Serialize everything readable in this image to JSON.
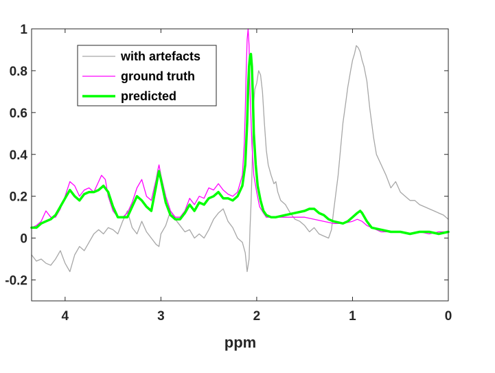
{
  "chart_data": {
    "type": "line",
    "title": "",
    "xlabel": "ppm",
    "ylabel": "",
    "xlim": [
      4.35,
      0
    ],
    "ylim": [
      -0.3,
      1.0
    ],
    "x_reversed": true,
    "grid": false,
    "legend_position": "top-left",
    "xticks": [
      4,
      3,
      2,
      1,
      0
    ],
    "xtick_labels": [
      "4",
      "3",
      "2",
      "1",
      "0"
    ],
    "yticks": [
      -0.2,
      0,
      0.2,
      0.4,
      0.6,
      0.8,
      1
    ],
    "ytick_labels": [
      "-0.2",
      "0",
      "0.2",
      "0.4",
      "0.6",
      "0.8",
      "1"
    ],
    "series": [
      {
        "name": "with artefacts",
        "color": "#a6a6a6",
        "line_width": "thin",
        "points": [
          [
            4.35,
            -0.08
          ],
          [
            4.3,
            -0.11
          ],
          [
            4.25,
            -0.1
          ],
          [
            4.2,
            -0.12
          ],
          [
            4.15,
            -0.13
          ],
          [
            4.1,
            -0.1
          ],
          [
            4.05,
            -0.06
          ],
          [
            4.0,
            -0.12
          ],
          [
            3.95,
            -0.16
          ],
          [
            3.9,
            -0.08
          ],
          [
            3.85,
            -0.04
          ],
          [
            3.8,
            -0.06
          ],
          [
            3.75,
            -0.02
          ],
          [
            3.7,
            0.02
          ],
          [
            3.65,
            0.04
          ],
          [
            3.6,
            0.02
          ],
          [
            3.55,
            0.05
          ],
          [
            3.5,
            0.04
          ],
          [
            3.45,
            0.02
          ],
          [
            3.4,
            0.08
          ],
          [
            3.35,
            0.13
          ],
          [
            3.3,
            0.05
          ],
          [
            3.25,
            0.02
          ],
          [
            3.2,
            0.08
          ],
          [
            3.15,
            0.03
          ],
          [
            3.1,
            0.0
          ],
          [
            3.05,
            -0.03
          ],
          [
            3.02,
            -0.04
          ],
          [
            3.0,
            0.02
          ],
          [
            2.95,
            0.06
          ],
          [
            2.9,
            0.13
          ],
          [
            2.85,
            0.09
          ],
          [
            2.8,
            0.06
          ],
          [
            2.75,
            0.03
          ],
          [
            2.7,
            0.04
          ],
          [
            2.65,
            0.0
          ],
          [
            2.6,
            0.02
          ],
          [
            2.55,
            0.0
          ],
          [
            2.5,
            0.04
          ],
          [
            2.45,
            0.09
          ],
          [
            2.4,
            0.12
          ],
          [
            2.35,
            0.14
          ],
          [
            2.3,
            0.08
          ],
          [
            2.25,
            0.05
          ],
          [
            2.2,
            0.0
          ],
          [
            2.15,
            -0.02
          ],
          [
            2.12,
            -0.07
          ],
          [
            2.1,
            -0.16
          ],
          [
            2.08,
            -0.1
          ],
          [
            2.07,
            0.05
          ],
          [
            2.06,
            0.15
          ],
          [
            2.05,
            0.3
          ],
          [
            2.04,
            0.5
          ],
          [
            2.03,
            0.65
          ],
          [
            2.02,
            0.71
          ],
          [
            2.0,
            0.74
          ],
          [
            1.98,
            0.8
          ],
          [
            1.96,
            0.78
          ],
          [
            1.94,
            0.7
          ],
          [
            1.92,
            0.55
          ],
          [
            1.9,
            0.42
          ],
          [
            1.88,
            0.35
          ],
          [
            1.85,
            0.3
          ],
          [
            1.82,
            0.26
          ],
          [
            1.8,
            0.27
          ],
          [
            1.78,
            0.22
          ],
          [
            1.75,
            0.18
          ],
          [
            1.7,
            0.16
          ],
          [
            1.65,
            0.12
          ],
          [
            1.6,
            0.09
          ],
          [
            1.55,
            0.08
          ],
          [
            1.5,
            0.06
          ],
          [
            1.45,
            0.03
          ],
          [
            1.4,
            0.05
          ],
          [
            1.35,
            0.02
          ],
          [
            1.3,
            0.01
          ],
          [
            1.25,
            0.0
          ],
          [
            1.22,
            0.04
          ],
          [
            1.2,
            0.12
          ],
          [
            1.15,
            0.3
          ],
          [
            1.12,
            0.45
          ],
          [
            1.1,
            0.55
          ],
          [
            1.07,
            0.65
          ],
          [
            1.05,
            0.72
          ],
          [
            1.02,
            0.8
          ],
          [
            1.0,
            0.85
          ],
          [
            0.98,
            0.88
          ],
          [
            0.96,
            0.92
          ],
          [
            0.94,
            0.91
          ],
          [
            0.92,
            0.89
          ],
          [
            0.9,
            0.85
          ],
          [
            0.88,
            0.82
          ],
          [
            0.85,
            0.75
          ],
          [
            0.82,
            0.62
          ],
          [
            0.78,
            0.48
          ],
          [
            0.75,
            0.4
          ],
          [
            0.7,
            0.35
          ],
          [
            0.65,
            0.3
          ],
          [
            0.6,
            0.24
          ],
          [
            0.55,
            0.27
          ],
          [
            0.5,
            0.22
          ],
          [
            0.45,
            0.2
          ],
          [
            0.4,
            0.18
          ],
          [
            0.35,
            0.18
          ],
          [
            0.3,
            0.16
          ],
          [
            0.25,
            0.15
          ],
          [
            0.2,
            0.14
          ],
          [
            0.15,
            0.13
          ],
          [
            0.1,
            0.12
          ],
          [
            0.05,
            0.11
          ],
          [
            0.0,
            0.09
          ]
        ]
      },
      {
        "name": "ground truth",
        "color": "#ff00ff",
        "line_width": "thin",
        "points": [
          [
            4.35,
            0.05
          ],
          [
            4.3,
            0.06
          ],
          [
            4.25,
            0.08
          ],
          [
            4.2,
            0.13
          ],
          [
            4.15,
            0.1
          ],
          [
            4.1,
            0.1
          ],
          [
            4.05,
            0.14
          ],
          [
            4.0,
            0.2
          ],
          [
            3.95,
            0.27
          ],
          [
            3.9,
            0.25
          ],
          [
            3.85,
            0.2
          ],
          [
            3.8,
            0.23
          ],
          [
            3.75,
            0.24
          ],
          [
            3.7,
            0.22
          ],
          [
            3.65,
            0.27
          ],
          [
            3.62,
            0.3
          ],
          [
            3.58,
            0.28
          ],
          [
            3.55,
            0.2
          ],
          [
            3.5,
            0.13
          ],
          [
            3.45,
            0.1
          ],
          [
            3.4,
            0.1
          ],
          [
            3.35,
            0.12
          ],
          [
            3.3,
            0.17
          ],
          [
            3.25,
            0.24
          ],
          [
            3.2,
            0.28
          ],
          [
            3.15,
            0.2
          ],
          [
            3.1,
            0.18
          ],
          [
            3.05,
            0.28
          ],
          [
            3.03,
            0.33
          ],
          [
            3.02,
            0.35
          ],
          [
            3.0,
            0.3
          ],
          [
            2.95,
            0.2
          ],
          [
            2.9,
            0.13
          ],
          [
            2.85,
            0.1
          ],
          [
            2.8,
            0.1
          ],
          [
            2.75,
            0.13
          ],
          [
            2.7,
            0.19
          ],
          [
            2.65,
            0.16
          ],
          [
            2.6,
            0.2
          ],
          [
            2.55,
            0.19
          ],
          [
            2.5,
            0.24
          ],
          [
            2.45,
            0.23
          ],
          [
            2.4,
            0.26
          ],
          [
            2.35,
            0.23
          ],
          [
            2.3,
            0.21
          ],
          [
            2.25,
            0.2
          ],
          [
            2.2,
            0.22
          ],
          [
            2.15,
            0.3
          ],
          [
            2.13,
            0.45
          ],
          [
            2.12,
            0.6
          ],
          [
            2.11,
            0.8
          ],
          [
            2.1,
            0.95
          ],
          [
            2.09,
            1.0
          ],
          [
            2.08,
            0.92
          ],
          [
            2.07,
            0.7
          ],
          [
            2.05,
            0.45
          ],
          [
            2.03,
            0.3
          ],
          [
            2.0,
            0.22
          ],
          [
            1.97,
            0.15
          ],
          [
            1.93,
            0.12
          ],
          [
            1.9,
            0.1
          ],
          [
            1.8,
            0.1
          ],
          [
            1.7,
            0.1
          ],
          [
            1.6,
            0.1
          ],
          [
            1.5,
            0.1
          ],
          [
            1.4,
            0.09
          ],
          [
            1.3,
            0.08
          ],
          [
            1.2,
            0.07
          ],
          [
            1.1,
            0.07
          ],
          [
            1.0,
            0.08
          ],
          [
            0.95,
            0.09
          ],
          [
            0.9,
            0.08
          ],
          [
            0.85,
            0.06
          ],
          [
            0.8,
            0.05
          ],
          [
            0.7,
            0.03
          ],
          [
            0.6,
            0.03
          ],
          [
            0.5,
            0.03
          ],
          [
            0.4,
            0.02
          ],
          [
            0.3,
            0.03
          ],
          [
            0.2,
            0.02
          ],
          [
            0.1,
            0.03
          ],
          [
            0.0,
            0.03
          ]
        ]
      },
      {
        "name": "predicted",
        "color": "#00ff00",
        "line_width": "thick",
        "points": [
          [
            4.35,
            0.05
          ],
          [
            4.3,
            0.05
          ],
          [
            4.25,
            0.07
          ],
          [
            4.2,
            0.08
          ],
          [
            4.15,
            0.09
          ],
          [
            4.1,
            0.11
          ],
          [
            4.05,
            0.15
          ],
          [
            4.0,
            0.19
          ],
          [
            3.95,
            0.23
          ],
          [
            3.9,
            0.2
          ],
          [
            3.85,
            0.18
          ],
          [
            3.8,
            0.21
          ],
          [
            3.75,
            0.22
          ],
          [
            3.7,
            0.22
          ],
          [
            3.65,
            0.23
          ],
          [
            3.6,
            0.25
          ],
          [
            3.55,
            0.22
          ],
          [
            3.5,
            0.15
          ],
          [
            3.45,
            0.1
          ],
          [
            3.4,
            0.1
          ],
          [
            3.35,
            0.1
          ],
          [
            3.3,
            0.15
          ],
          [
            3.25,
            0.2
          ],
          [
            3.2,
            0.18
          ],
          [
            3.15,
            0.15
          ],
          [
            3.1,
            0.13
          ],
          [
            3.05,
            0.25
          ],
          [
            3.03,
            0.3
          ],
          [
            3.02,
            0.32
          ],
          [
            3.0,
            0.28
          ],
          [
            2.95,
            0.17
          ],
          [
            2.9,
            0.11
          ],
          [
            2.85,
            0.09
          ],
          [
            2.8,
            0.09
          ],
          [
            2.75,
            0.12
          ],
          [
            2.7,
            0.16
          ],
          [
            2.65,
            0.13
          ],
          [
            2.6,
            0.17
          ],
          [
            2.55,
            0.16
          ],
          [
            2.5,
            0.19
          ],
          [
            2.45,
            0.2
          ],
          [
            2.4,
            0.22
          ],
          [
            2.35,
            0.19
          ],
          [
            2.3,
            0.19
          ],
          [
            2.25,
            0.18
          ],
          [
            2.2,
            0.2
          ],
          [
            2.15,
            0.25
          ],
          [
            2.12,
            0.35
          ],
          [
            2.1,
            0.55
          ],
          [
            2.09,
            0.72
          ],
          [
            2.08,
            0.82
          ],
          [
            2.07,
            0.87
          ],
          [
            2.06,
            0.88
          ],
          [
            2.05,
            0.82
          ],
          [
            2.04,
            0.68
          ],
          [
            2.03,
            0.5
          ],
          [
            2.01,
            0.35
          ],
          [
            1.99,
            0.25
          ],
          [
            1.96,
            0.18
          ],
          [
            1.93,
            0.13
          ],
          [
            1.9,
            0.11
          ],
          [
            1.85,
            0.1
          ],
          [
            1.8,
            0.1
          ],
          [
            1.7,
            0.11
          ],
          [
            1.6,
            0.12
          ],
          [
            1.5,
            0.13
          ],
          [
            1.45,
            0.14
          ],
          [
            1.4,
            0.14
          ],
          [
            1.35,
            0.12
          ],
          [
            1.3,
            0.11
          ],
          [
            1.25,
            0.09
          ],
          [
            1.2,
            0.08
          ],
          [
            1.1,
            0.07
          ],
          [
            1.05,
            0.08
          ],
          [
            1.0,
            0.1
          ],
          [
            0.95,
            0.12
          ],
          [
            0.92,
            0.13
          ],
          [
            0.9,
            0.12
          ],
          [
            0.85,
            0.08
          ],
          [
            0.8,
            0.05
          ],
          [
            0.7,
            0.04
          ],
          [
            0.6,
            0.03
          ],
          [
            0.5,
            0.03
          ],
          [
            0.4,
            0.02
          ],
          [
            0.3,
            0.03
          ],
          [
            0.2,
            0.03
          ],
          [
            0.1,
            0.02
          ],
          [
            0.0,
            0.03
          ]
        ]
      }
    ]
  }
}
